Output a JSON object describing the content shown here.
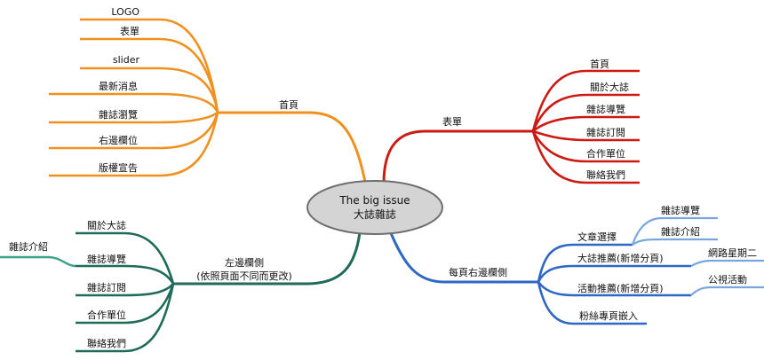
{
  "center": {
    "line1": "The big issue",
    "line2": "大誌雜誌"
  },
  "colors": {
    "home": "#f0901e",
    "menu": "#cc1a12",
    "left": "#1e6b5a",
    "leftSub": "#3aa085",
    "right": "#2f67c4",
    "rightSub": "#7aa6e0",
    "centerFill": "#d4d4d4",
    "centerStroke": "#6e6e6e"
  },
  "branches": {
    "home": {
      "label": "首頁",
      "children": [
        "LOGO",
        "表單",
        "slider",
        "最新消息",
        "雜誌瀏覽",
        "右邊欄位",
        "版權宣告"
      ]
    },
    "menu": {
      "label": "表單",
      "children": [
        "首頁",
        "關於大誌",
        "雜誌導覽",
        "雜誌訂閱",
        "合作單位",
        "聯絡我們"
      ]
    },
    "left": {
      "label_line1": "左邊欄側",
      "label_line2": "(依照頁面不同而更改)",
      "children": [
        "關於大誌",
        "雜誌導覽",
        "雜誌訂閱",
        "合作單位",
        "聯絡我們"
      ],
      "sub": {
        "label": "雜誌介紹"
      }
    },
    "right": {
      "label": "每頁右邊欄側",
      "children": [
        {
          "label": "文章選擇",
          "subs": [
            "雜誌導覽",
            "雜誌介紹"
          ]
        },
        {
          "label": "大誌推薦(新增分頁)",
          "subs": [
            "網路星期二"
          ]
        },
        {
          "label": "活動推薦(新增分頁)",
          "subs": [
            "公視活動"
          ]
        },
        {
          "label": "粉絲專頁嵌入",
          "subs": []
        }
      ]
    }
  }
}
